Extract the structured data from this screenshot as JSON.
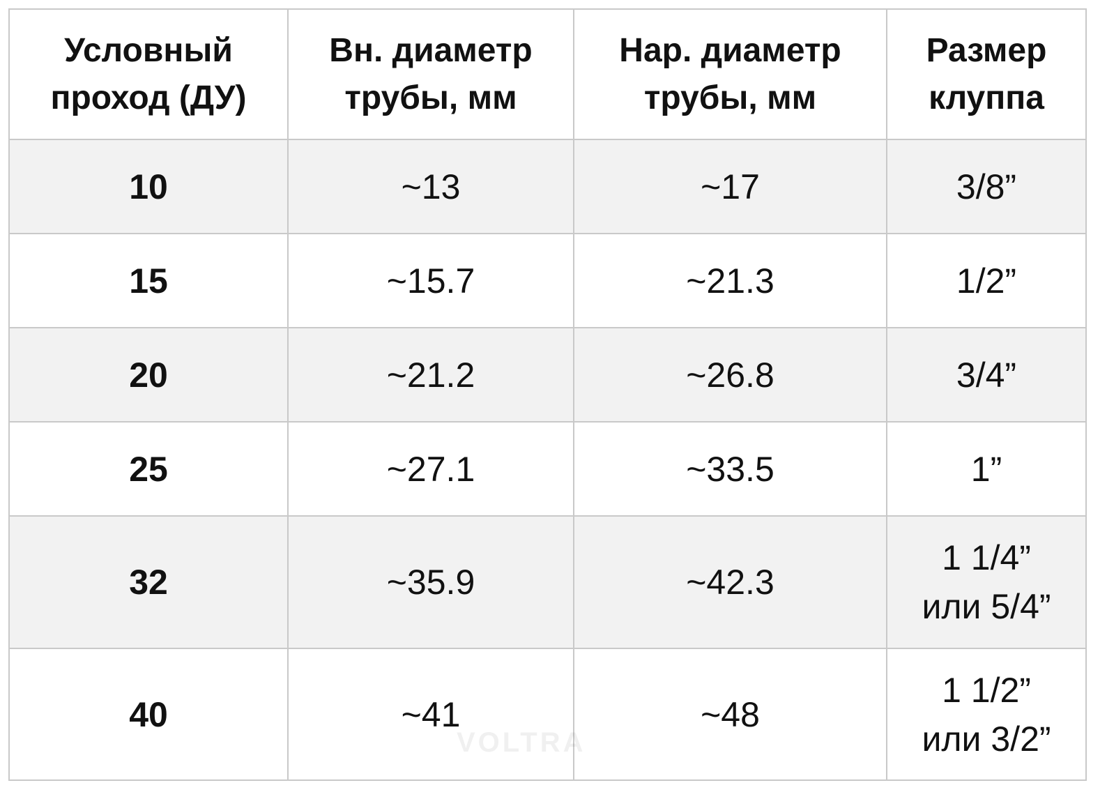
{
  "table": {
    "header": [
      "Условный\nпроход (ДУ)",
      "Вн. диаметр\nтрубы, мм",
      "Нар. диаметр\nтрубы, мм",
      "Размер\nклуппа"
    ],
    "rows": [
      [
        "10",
        "~13",
        "~17",
        "3/8”"
      ],
      [
        "15",
        "~15.7",
        "~21.3",
        "1/2”"
      ],
      [
        "20",
        "~21.2",
        "~26.8",
        "3/4”"
      ],
      [
        "25",
        "~27.1",
        "~33.5",
        "1”"
      ],
      [
        "32",
        "~35.9",
        "~42.3",
        "1 1/4”\nили 5/4”"
      ],
      [
        "40",
        "~41",
        "~48",
        "1 1/2”\nили 3/2”"
      ]
    ]
  },
  "watermark": "VOLTRA"
}
